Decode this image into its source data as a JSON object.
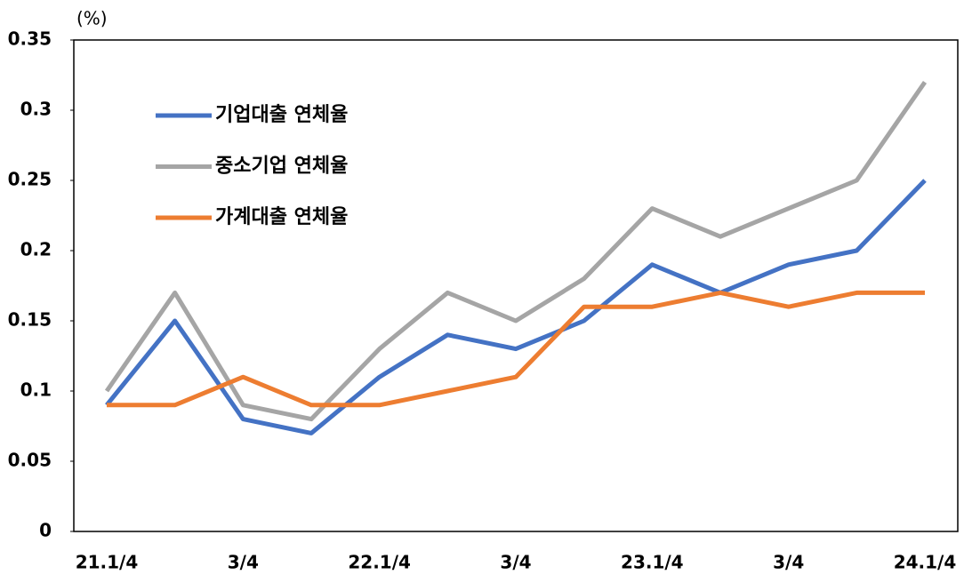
{
  "chart_data": {
    "type": "line",
    "y_label": "(%)",
    "categories": [
      "21.1/4",
      null,
      "3/4",
      null,
      "22.1/4",
      null,
      "3/4",
      null,
      "23.1/4",
      null,
      "3/4",
      null,
      "24.1/4"
    ],
    "series": [
      {
        "name": "기업대출 연체율",
        "color": "#4472c4",
        "values": [
          0.09,
          0.15,
          0.08,
          0.07,
          0.11,
          0.14,
          0.13,
          0.15,
          0.19,
          0.17,
          0.19,
          0.2,
          0.25
        ]
      },
      {
        "name": "중소기업 연체율",
        "color": "#a5a5a5",
        "values": [
          0.1,
          0.17,
          0.09,
          0.08,
          0.13,
          0.17,
          0.15,
          0.18,
          0.23,
          0.21,
          0.23,
          0.25,
          0.32
        ]
      },
      {
        "name": "가계대출 연체율",
        "color": "#ed7d31",
        "values": [
          0.09,
          0.09,
          0.11,
          0.09,
          0.09,
          0.1,
          0.11,
          0.16,
          0.16,
          0.17,
          0.16,
          0.17,
          0.17
        ]
      }
    ],
    "ylim": [
      0,
      0.35
    ],
    "yticks": [
      0,
      0.05,
      0.1,
      0.15,
      0.2,
      0.25,
      0.3,
      0.35
    ],
    "grid": false,
    "legend": "upper left"
  }
}
